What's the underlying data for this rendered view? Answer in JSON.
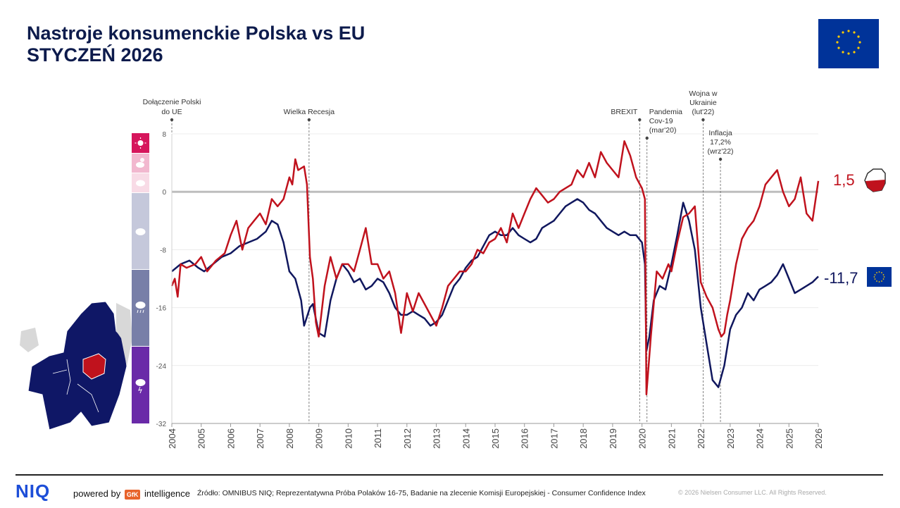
{
  "header": {
    "title_line1": "Nastroje konsumenckie Polska vs EU",
    "title_line2": "STYCZEŃ 2026"
  },
  "colors": {
    "poland": "#c0121d",
    "eu": "#10175e",
    "zero": "#bdbdbd",
    "navy": "#0d1b4c"
  },
  "chart_data": {
    "type": "line",
    "x_range": [
      2004,
      2026
    ],
    "ylim": [
      -32,
      8
    ],
    "yticks": [
      8,
      0,
      -8,
      -16,
      -24,
      -32
    ],
    "xticks": [
      "2004",
      "2005",
      "2006",
      "2007",
      "2008",
      "2009",
      "2010",
      "2011",
      "2012",
      "2013",
      "2014",
      "2015",
      "2016",
      "2017",
      "2018",
      "2019",
      "2020",
      "2021",
      "2022",
      "2023",
      "2024",
      "2025",
      "2026"
    ],
    "series": [
      {
        "name": "Polska",
        "end_label": "1,5",
        "points": [
          [
            2004.0,
            -13
          ],
          [
            2004.1,
            -12
          ],
          [
            2004.2,
            -14.5
          ],
          [
            2004.3,
            -10
          ],
          [
            2004.5,
            -10.5
          ],
          [
            2004.8,
            -10
          ],
          [
            2005.0,
            -9
          ],
          [
            2005.2,
            -11
          ],
          [
            2005.5,
            -9.5
          ],
          [
            2005.8,
            -8.5
          ],
          [
            2006.0,
            -6
          ],
          [
            2006.2,
            -4
          ],
          [
            2006.4,
            -8
          ],
          [
            2006.6,
            -5
          ],
          [
            2006.8,
            -4
          ],
          [
            2007.0,
            -3
          ],
          [
            2007.2,
            -4.5
          ],
          [
            2007.4,
            -1
          ],
          [
            2007.6,
            -2
          ],
          [
            2007.8,
            -1
          ],
          [
            2008.0,
            2
          ],
          [
            2008.1,
            1
          ],
          [
            2008.2,
            4.5
          ],
          [
            2008.3,
            3
          ],
          [
            2008.5,
            3.5
          ],
          [
            2008.6,
            1
          ],
          [
            2008.7,
            -9
          ],
          [
            2008.8,
            -12
          ],
          [
            2008.9,
            -18
          ],
          [
            2009.0,
            -20
          ],
          [
            2009.2,
            -13
          ],
          [
            2009.4,
            -9
          ],
          [
            2009.6,
            -12
          ],
          [
            2009.8,
            -10
          ],
          [
            2010.0,
            -10
          ],
          [
            2010.2,
            -11
          ],
          [
            2010.4,
            -8
          ],
          [
            2010.6,
            -5
          ],
          [
            2010.8,
            -10
          ],
          [
            2011.0,
            -10
          ],
          [
            2011.2,
            -12
          ],
          [
            2011.4,
            -11
          ],
          [
            2011.6,
            -14
          ],
          [
            2011.8,
            -19.5
          ],
          [
            2012.0,
            -14
          ],
          [
            2012.2,
            -16.5
          ],
          [
            2012.4,
            -14
          ],
          [
            2012.6,
            -15.5
          ],
          [
            2012.8,
            -17
          ],
          [
            2013.0,
            -18.5
          ],
          [
            2013.2,
            -16
          ],
          [
            2013.4,
            -13
          ],
          [
            2013.6,
            -12
          ],
          [
            2013.8,
            -11
          ],
          [
            2014.0,
            -11
          ],
          [
            2014.2,
            -10
          ],
          [
            2014.4,
            -8
          ],
          [
            2014.6,
            -8.5
          ],
          [
            2014.8,
            -7
          ],
          [
            2015.0,
            -6.5
          ],
          [
            2015.2,
            -5
          ],
          [
            2015.4,
            -7
          ],
          [
            2015.6,
            -3
          ],
          [
            2015.8,
            -5
          ],
          [
            2016.0,
            -3
          ],
          [
            2016.2,
            -1
          ],
          [
            2016.4,
            0.5
          ],
          [
            2016.6,
            -0.5
          ],
          [
            2016.8,
            -1.5
          ],
          [
            2017.0,
            -1
          ],
          [
            2017.2,
            0
          ],
          [
            2017.4,
            0.5
          ],
          [
            2017.6,
            1
          ],
          [
            2017.8,
            3
          ],
          [
            2018.0,
            2
          ],
          [
            2018.2,
            4
          ],
          [
            2018.4,
            2
          ],
          [
            2018.6,
            5.5
          ],
          [
            2018.8,
            4
          ],
          [
            2019.0,
            3
          ],
          [
            2019.2,
            2
          ],
          [
            2019.4,
            7
          ],
          [
            2019.6,
            5
          ],
          [
            2019.8,
            2
          ],
          [
            2020.0,
            0.5
          ],
          [
            2020.1,
            -1
          ],
          [
            2020.15,
            -28
          ],
          [
            2020.3,
            -20
          ],
          [
            2020.5,
            -11
          ],
          [
            2020.7,
            -12
          ],
          [
            2020.9,
            -10
          ],
          [
            2021.0,
            -11
          ],
          [
            2021.2,
            -7
          ],
          [
            2021.4,
            -3.5
          ],
          [
            2021.6,
            -3
          ],
          [
            2021.8,
            -2
          ],
          [
            2022.0,
            -12.5
          ],
          [
            2022.2,
            -14.5
          ],
          [
            2022.4,
            -16
          ],
          [
            2022.6,
            -19
          ],
          [
            2022.7,
            -20
          ],
          [
            2022.8,
            -19.5
          ],
          [
            2022.9,
            -17
          ],
          [
            2023.0,
            -15
          ],
          [
            2023.2,
            -10
          ],
          [
            2023.4,
            -6.5
          ],
          [
            2023.6,
            -5
          ],
          [
            2023.8,
            -4
          ],
          [
            2024.0,
            -2
          ],
          [
            2024.2,
            1
          ],
          [
            2024.4,
            2
          ],
          [
            2024.6,
            3
          ],
          [
            2024.8,
            0
          ],
          [
            2025.0,
            -2
          ],
          [
            2025.2,
            -1
          ],
          [
            2025.4,
            2
          ],
          [
            2025.6,
            -3
          ],
          [
            2025.8,
            -4
          ],
          [
            2026.0,
            1.5
          ]
        ]
      },
      {
        "name": "EU",
        "end_label": "-11,7",
        "points": [
          [
            2004.0,
            -11
          ],
          [
            2004.3,
            -10
          ],
          [
            2004.6,
            -9.5
          ],
          [
            2004.9,
            -10.5
          ],
          [
            2005.1,
            -11
          ],
          [
            2005.4,
            -10
          ],
          [
            2005.7,
            -9
          ],
          [
            2006.0,
            -8.5
          ],
          [
            2006.3,
            -7.5
          ],
          [
            2006.6,
            -7
          ],
          [
            2006.9,
            -6.5
          ],
          [
            2007.2,
            -5.5
          ],
          [
            2007.4,
            -4
          ],
          [
            2007.6,
            -4.5
          ],
          [
            2007.8,
            -7
          ],
          [
            2008.0,
            -11
          ],
          [
            2008.2,
            -12
          ],
          [
            2008.4,
            -15
          ],
          [
            2008.5,
            -18.5
          ],
          [
            2008.7,
            -16
          ],
          [
            2008.8,
            -15.5
          ],
          [
            2009.0,
            -19.5
          ],
          [
            2009.2,
            -20
          ],
          [
            2009.4,
            -15
          ],
          [
            2009.6,
            -12
          ],
          [
            2009.8,
            -10
          ],
          [
            2010.0,
            -11
          ],
          [
            2010.2,
            -12.5
          ],
          [
            2010.4,
            -12
          ],
          [
            2010.6,
            -13.5
          ],
          [
            2010.8,
            -13
          ],
          [
            2011.0,
            -12
          ],
          [
            2011.2,
            -12.5
          ],
          [
            2011.4,
            -14
          ],
          [
            2011.6,
            -16
          ],
          [
            2011.8,
            -17
          ],
          [
            2012.0,
            -17
          ],
          [
            2012.2,
            -16.5
          ],
          [
            2012.4,
            -17
          ],
          [
            2012.6,
            -17.5
          ],
          [
            2012.8,
            -18.5
          ],
          [
            2013.0,
            -18
          ],
          [
            2013.2,
            -17
          ],
          [
            2013.4,
            -15
          ],
          [
            2013.6,
            -13
          ],
          [
            2013.8,
            -12
          ],
          [
            2014.0,
            -10.5
          ],
          [
            2014.2,
            -9.5
          ],
          [
            2014.4,
            -9
          ],
          [
            2014.6,
            -7.5
          ],
          [
            2014.8,
            -6
          ],
          [
            2015.0,
            -5.5
          ],
          [
            2015.2,
            -6
          ],
          [
            2015.4,
            -6
          ],
          [
            2015.6,
            -5
          ],
          [
            2015.8,
            -6
          ],
          [
            2016.0,
            -6.5
          ],
          [
            2016.2,
            -7
          ],
          [
            2016.4,
            -6.5
          ],
          [
            2016.6,
            -5
          ],
          [
            2016.8,
            -4.5
          ],
          [
            2017.0,
            -4
          ],
          [
            2017.2,
            -3
          ],
          [
            2017.4,
            -2
          ],
          [
            2017.6,
            -1.5
          ],
          [
            2017.8,
            -1
          ],
          [
            2018.0,
            -1.5
          ],
          [
            2018.2,
            -2.5
          ],
          [
            2018.4,
            -3
          ],
          [
            2018.6,
            -4
          ],
          [
            2018.8,
            -5
          ],
          [
            2019.0,
            -5.5
          ],
          [
            2019.2,
            -6
          ],
          [
            2019.4,
            -5.5
          ],
          [
            2019.6,
            -6
          ],
          [
            2019.8,
            -6
          ],
          [
            2020.0,
            -7
          ],
          [
            2020.1,
            -10
          ],
          [
            2020.15,
            -22
          ],
          [
            2020.25,
            -20
          ],
          [
            2020.4,
            -15
          ],
          [
            2020.6,
            -13
          ],
          [
            2020.8,
            -13.5
          ],
          [
            2021.0,
            -10
          ],
          [
            2021.2,
            -6
          ],
          [
            2021.4,
            -1.5
          ],
          [
            2021.6,
            -4
          ],
          [
            2021.8,
            -8
          ],
          [
            2022.0,
            -16
          ],
          [
            2022.2,
            -21
          ],
          [
            2022.4,
            -26
          ],
          [
            2022.6,
            -27
          ],
          [
            2022.8,
            -24
          ],
          [
            2023.0,
            -19
          ],
          [
            2023.2,
            -17
          ],
          [
            2023.4,
            -16
          ],
          [
            2023.6,
            -14
          ],
          [
            2023.8,
            -15
          ],
          [
            2024.0,
            -13.5
          ],
          [
            2024.2,
            -13
          ],
          [
            2024.4,
            -12.5
          ],
          [
            2024.6,
            -11.5
          ],
          [
            2024.8,
            -10
          ],
          [
            2025.0,
            -12
          ],
          [
            2025.2,
            -14
          ],
          [
            2025.4,
            -13.5
          ],
          [
            2025.6,
            -13
          ],
          [
            2025.8,
            -12.5
          ],
          [
            2026.0,
            -11.7
          ]
        ]
      }
    ],
    "events": [
      {
        "name": "Dołączenie Polski do UE",
        "lines": [
          "Dołączenie Polski",
          "do UE"
        ],
        "x": 2004.0,
        "anchor": "middle"
      },
      {
        "name": "Wielka Recesja",
        "lines": [
          "Wielka Recesja"
        ],
        "x": 2008.67,
        "anchor": "middle"
      },
      {
        "name": "BREXIT",
        "lines": [
          "BREXIT"
        ],
        "x": 2019.92,
        "anchor": "end"
      },
      {
        "name": "Pandemia Cov-19 (mar'20)",
        "lines": [
          "Pandemia",
          "Cov-19",
          "(mar'20)"
        ],
        "x": 2020.17,
        "anchor": "start"
      },
      {
        "name": "Wojna w Ukrainie (lut'22)",
        "lines": [
          "Wojna w",
          "Ukrainie",
          "(lut'22)"
        ],
        "x": 2022.08,
        "anchor": "middle"
      },
      {
        "name": "Inflacja 17,2% (wrz'22)",
        "lines": [
          "Inflacja",
          "17,2%",
          "(wrz'22)"
        ],
        "x": 2022.67,
        "anchor": "middle"
      }
    ],
    "sentiment_scale": [
      "sun-icon",
      "sun-cloud-icon",
      "cloud-icon",
      "cloud-icon",
      "rain-cloud-icon",
      "storm-cloud-icon"
    ]
  },
  "footer": {
    "logo": "NIQ",
    "powered": "powered by",
    "gfk": "GfK",
    "intelligence": "intelligence",
    "source": "Źródło: OMNIBUS NIQ; Reprezentatywna Próba Polaków 16-75, Badanie na zlecenie Komisji Europejskiej - Consumer Confidence Index",
    "copyright": "© 2026 Nielsen Consumer LLC. All Rights Reserved."
  }
}
